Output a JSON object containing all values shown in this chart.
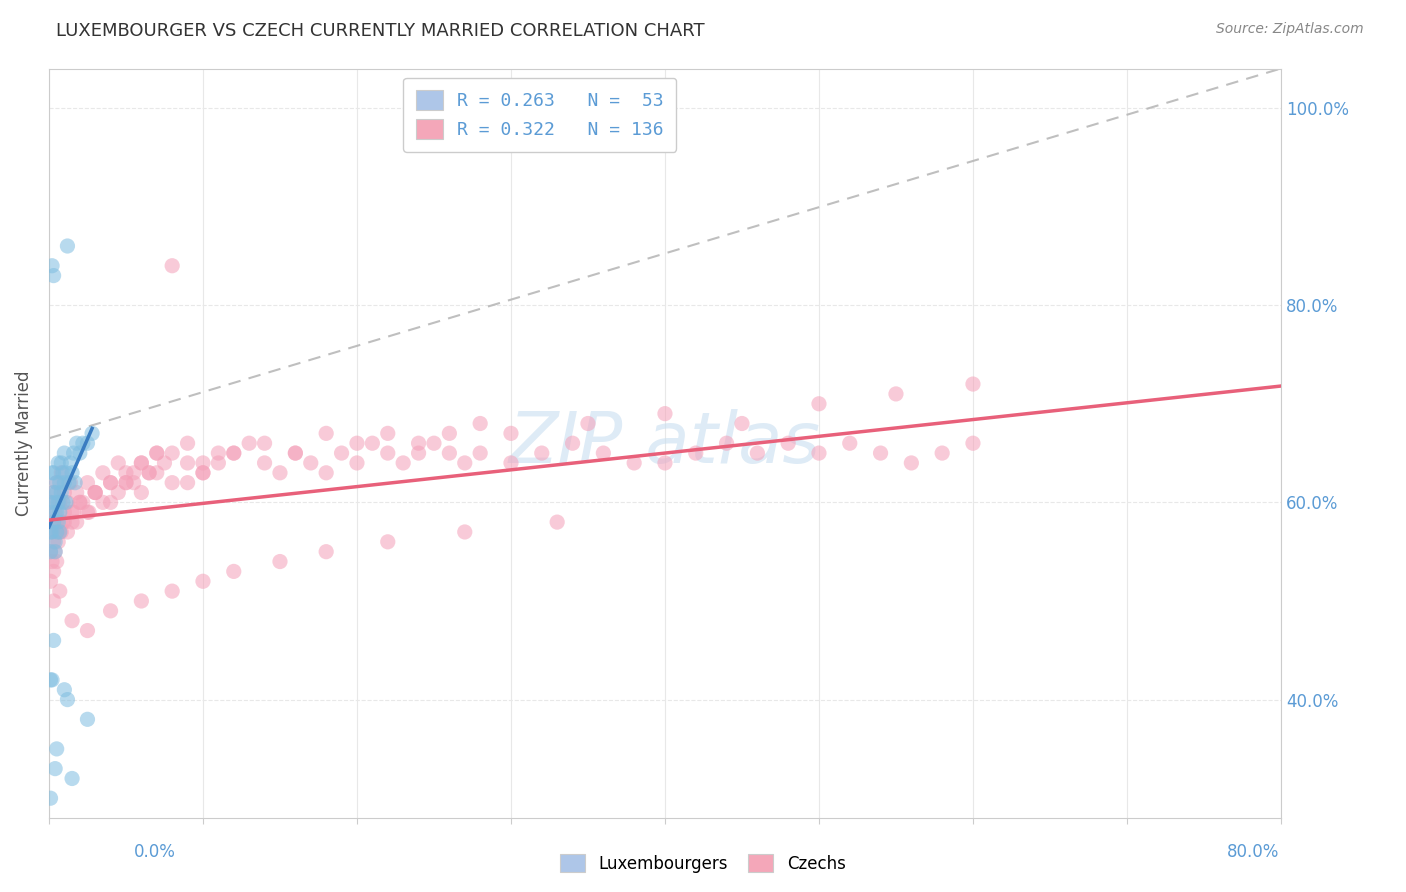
{
  "title": "LUXEMBOURGER VS CZECH CURRENTLY MARRIED CORRELATION CHART",
  "source": "Source: ZipAtlas.com",
  "ylabel": "Currently Married",
  "xlim": [
    0.0,
    0.8
  ],
  "ylim": [
    0.28,
    1.04
  ],
  "ytick_vals": [
    0.4,
    0.6,
    0.8,
    1.0
  ],
  "ytick_labels": [
    "40.0%",
    "60.0%",
    "80.0%",
    "100.0%"
  ],
  "legend_entries": [
    {
      "label": "R = 0.263   N =  53",
      "color": "#aec6e8"
    },
    {
      "label": "R = 0.322   N = 136",
      "color": "#f4a7b9"
    }
  ],
  "blue_color": "#7fbde0",
  "pink_color": "#f4a0b8",
  "blue_line_color": "#3a7cc1",
  "pink_line_color": "#e8607a",
  "ref_line_color": "#b8b8b8",
  "ref_line_x": [
    0.0,
    0.8
  ],
  "ref_line_y": [
    0.665,
    1.04
  ],
  "lux_trend_x": [
    0.0,
    0.028
  ],
  "lux_trend_y": [
    0.575,
    0.675
  ],
  "czech_trend_x": [
    0.0,
    0.8
  ],
  "czech_trend_y": [
    0.582,
    0.718
  ],
  "background_color": "#ffffff",
  "grid_color": "#e8e8e8",
  "title_color": "#333333",
  "axis_label_color": "#5b9bd5",
  "source_color": "#888888",
  "watermark_color": "#c8def0",
  "scatter_size": 120,
  "scatter_alpha": 0.55,
  "lux_x": [
    0.001,
    0.001,
    0.001,
    0.002,
    0.002,
    0.002,
    0.002,
    0.003,
    0.003,
    0.003,
    0.003,
    0.004,
    0.004,
    0.004,
    0.005,
    0.005,
    0.005,
    0.005,
    0.006,
    0.006,
    0.006,
    0.007,
    0.007,
    0.007,
    0.008,
    0.008,
    0.009,
    0.009,
    0.01,
    0.01,
    0.011,
    0.011,
    0.012,
    0.013,
    0.014,
    0.015,
    0.016,
    0.017,
    0.018,
    0.02,
    0.022,
    0.025,
    0.028,
    0.002,
    0.003,
    0.004,
    0.005,
    0.01,
    0.015,
    0.001,
    0.001,
    0.012,
    0.025
  ],
  "lux_y": [
    0.57,
    0.6,
    0.55,
    0.63,
    0.59,
    0.57,
    0.84,
    0.61,
    0.58,
    0.63,
    0.83,
    0.55,
    0.6,
    0.56,
    0.59,
    0.62,
    0.57,
    0.61,
    0.64,
    0.58,
    0.6,
    0.59,
    0.62,
    0.57,
    0.61,
    0.64,
    0.6,
    0.63,
    0.62,
    0.65,
    0.6,
    0.63,
    0.86,
    0.62,
    0.64,
    0.63,
    0.65,
    0.62,
    0.66,
    0.65,
    0.66,
    0.66,
    0.67,
    0.42,
    0.46,
    0.33,
    0.35,
    0.41,
    0.32,
    0.3,
    0.42,
    0.4,
    0.38
  ],
  "czech_x": [
    0.001,
    0.002,
    0.003,
    0.004,
    0.005,
    0.006,
    0.007,
    0.008,
    0.009,
    0.01,
    0.012,
    0.014,
    0.016,
    0.018,
    0.02,
    0.025,
    0.03,
    0.035,
    0.04,
    0.045,
    0.05,
    0.055,
    0.06,
    0.065,
    0.07,
    0.08,
    0.09,
    0.1,
    0.11,
    0.12,
    0.13,
    0.14,
    0.15,
    0.16,
    0.17,
    0.18,
    0.19,
    0.2,
    0.21,
    0.22,
    0.23,
    0.24,
    0.25,
    0.26,
    0.27,
    0.28,
    0.3,
    0.32,
    0.34,
    0.36,
    0.38,
    0.4,
    0.42,
    0.44,
    0.46,
    0.48,
    0.5,
    0.52,
    0.54,
    0.56,
    0.58,
    0.6,
    0.001,
    0.002,
    0.003,
    0.005,
    0.007,
    0.01,
    0.015,
    0.02,
    0.025,
    0.03,
    0.04,
    0.05,
    0.06,
    0.07,
    0.08,
    0.09,
    0.1,
    0.11,
    0.001,
    0.002,
    0.003,
    0.004,
    0.005,
    0.006,
    0.008,
    0.01,
    0.012,
    0.015,
    0.018,
    0.022,
    0.026,
    0.03,
    0.035,
    0.04,
    0.045,
    0.05,
    0.055,
    0.06,
    0.065,
    0.07,
    0.075,
    0.08,
    0.09,
    0.1,
    0.12,
    0.14,
    0.16,
    0.18,
    0.2,
    0.22,
    0.24,
    0.26,
    0.28,
    0.3,
    0.35,
    0.4,
    0.45,
    0.5,
    0.55,
    0.6,
    0.003,
    0.007,
    0.015,
    0.025,
    0.04,
    0.06,
    0.08,
    0.1,
    0.12,
    0.15,
    0.18,
    0.22,
    0.27,
    0.33
  ],
  "czech_y": [
    0.6,
    0.58,
    0.61,
    0.59,
    0.62,
    0.57,
    0.6,
    0.63,
    0.58,
    0.61,
    0.6,
    0.62,
    0.59,
    0.61,
    0.6,
    0.62,
    0.61,
    0.63,
    0.62,
    0.64,
    0.63,
    0.62,
    0.64,
    0.63,
    0.65,
    0.84,
    0.62,
    0.63,
    0.64,
    0.65,
    0.66,
    0.64,
    0.63,
    0.65,
    0.64,
    0.63,
    0.65,
    0.64,
    0.66,
    0.65,
    0.64,
    0.65,
    0.66,
    0.65,
    0.64,
    0.65,
    0.64,
    0.65,
    0.66,
    0.65,
    0.64,
    0.64,
    0.65,
    0.66,
    0.65,
    0.66,
    0.65,
    0.66,
    0.65,
    0.64,
    0.65,
    0.66,
    0.55,
    0.57,
    0.56,
    0.58,
    0.57,
    0.59,
    0.58,
    0.6,
    0.59,
    0.61,
    0.6,
    0.62,
    0.61,
    0.63,
    0.62,
    0.64,
    0.63,
    0.65,
    0.52,
    0.54,
    0.53,
    0.55,
    0.54,
    0.56,
    0.57,
    0.58,
    0.57,
    0.59,
    0.58,
    0.6,
    0.59,
    0.61,
    0.6,
    0.62,
    0.61,
    0.62,
    0.63,
    0.64,
    0.63,
    0.65,
    0.64,
    0.65,
    0.66,
    0.64,
    0.65,
    0.66,
    0.65,
    0.67,
    0.66,
    0.67,
    0.66,
    0.67,
    0.68,
    0.67,
    0.68,
    0.69,
    0.68,
    0.7,
    0.71,
    0.72,
    0.5,
    0.51,
    0.48,
    0.47,
    0.49,
    0.5,
    0.51,
    0.52,
    0.53,
    0.54,
    0.55,
    0.56,
    0.57,
    0.58
  ]
}
